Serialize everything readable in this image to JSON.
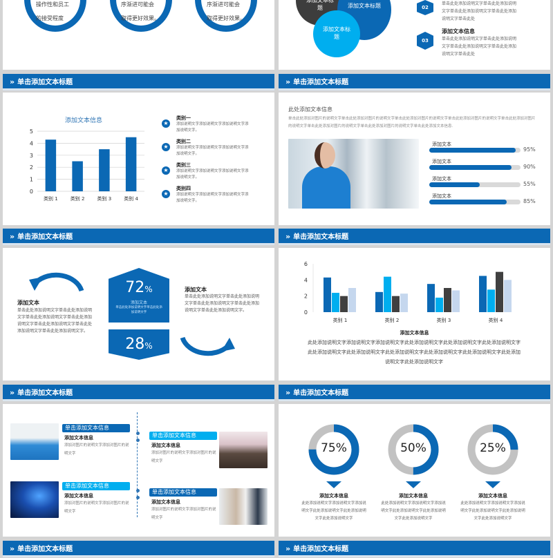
{
  "header_title": "单击添加文本标题",
  "colors": {
    "primary": "#0b68b4",
    "light": "#00aeef",
    "dark": "#404040",
    "pale": "#c5d7ee",
    "gray": "#d9d9d9"
  },
  "slide_top_left": {
    "circles": [
      {
        "lines": [
          "操作性和员工",
          "的接受程度"
        ]
      },
      {
        "lines": [
          "序渐进可能会",
          "取得更好效果。"
        ]
      },
      {
        "lines": [
          "序渐进可能会",
          "取得更好效果。"
        ]
      }
    ]
  },
  "slide_top_right": {
    "bubbles": [
      "添加文本标题",
      "添加文本标题",
      "添加文本标题"
    ],
    "items": [
      {
        "num": "02",
        "title": "",
        "text": "单击此处添加说明文字单击此处添加说明文字单击此处添加说明文字单击此处添加说明文字单击此处"
      },
      {
        "num": "03",
        "title": "添加文本信息",
        "text": "单击此处添加说明文字单击此处添加说明文字单击此处添加说明文字单击此处添加说明文字单击此处"
      }
    ]
  },
  "chart_data": [
    {
      "type": "bar",
      "title": "添加文本信息",
      "categories": [
        "类别 1",
        "类别 2",
        "类别 3",
        "类别 4"
      ],
      "values": [
        4.3,
        2.5,
        3.5,
        4.5
      ],
      "ylim": [
        0,
        5
      ],
      "yticks": [
        0,
        1,
        2,
        3,
        4,
        5
      ],
      "grid": true
    },
    {
      "type": "bar",
      "title": "",
      "categories": [
        "类别 1",
        "类别 2",
        "类别 3",
        "类别 4"
      ],
      "series": [
        {
          "values": [
            4.3,
            2.5,
            3.5,
            4.5
          ],
          "color": "#0b68b4"
        },
        {
          "values": [
            2.4,
            4.4,
            1.8,
            2.8
          ],
          "color": "#00aeef"
        },
        {
          "values": [
            2,
            2,
            3,
            5
          ],
          "color": "#404040"
        },
        {
          "values": [
            3,
            2.3,
            2.7,
            4
          ],
          "color": "#c5d7ee"
        }
      ],
      "ylim": [
        0,
        6
      ],
      "yticks": [
        0,
        2,
        4,
        6
      ],
      "grid": false
    }
  ],
  "slide_chart1": {
    "legend": [
      {
        "title": "类别一",
        "text": "添加说明文字添加说明文字添加说明文字添加说明文字。"
      },
      {
        "title": "类别二",
        "text": "添加说明文字添加说明文字添加说明文字添加说明文字。"
      },
      {
        "title": "类别三",
        "text": "添加说明文字添加说明文字添加说明文字添加说明文字。"
      },
      {
        "title": "类别四",
        "text": "添加说明文字添加说明文字添加说明文字添加说明文字。"
      }
    ]
  },
  "slide_progress": {
    "title": "此处添加文本信息",
    "paragraph": "单击此处添加对图片的说明文字单击此处添加对图片的说明文字单击此处添加对图片的说明文字单击此处添加对图片的说明文字单击此处添加对图片的说明文字单击此处添加对图片的说明文字单击此处添加对图片的说明文字单击此处添加文本信息.",
    "bars": [
      {
        "label": "添加文本",
        "value": 95,
        "text": "95%"
      },
      {
        "label": "添加文本",
        "value": 90,
        "text": "90%"
      },
      {
        "label": "添加文本",
        "value": 55,
        "text": "55%"
      },
      {
        "label": "添加文本",
        "value": 85,
        "text": "85%"
      }
    ]
  },
  "slide_percent": {
    "left_title": "添加文本",
    "left_text": "单击此处添加说明文字单击此处添加说明文字单击此处添加说明文字单击此处添加说明文字单击此处添加说明文字单击此处添加说明文字单击此处添加说明文字。",
    "top_value": "72",
    "top_label": "添加文本",
    "top_text": "单击此处添加说明文字单击此处添加说明文字",
    "bottom_value": "28",
    "percent_sign": "%",
    "right_title": "添加文本",
    "right_text": "单击此处添加说明文字单击此处添加说明文字单击此处添加说明文字单击此处添加说明文字单击此处添加说明文字。"
  },
  "slide_chart2": {
    "title": "添加文本信息",
    "text": "此处添加说明文字添加说明文字添加说明文字此处添加说明文字此处添加说明文字此处添加说明文字此处添加说明文字此处添加说明文字此处添加说明文字此处添加说明文字此处添加说明文字此处添加说明文字此处添加说明文字"
  },
  "slide_photos": {
    "items": [
      {
        "label": "单击添加文本信息",
        "title": "添加文本信息",
        "text": "添加对图片的说明文字添加对图片的说明文字"
      },
      {
        "label": "单击添加文本信息",
        "title": "添加文本信息",
        "text": "添加对图片的说明文字添加对图片的说明文字"
      },
      {
        "label": "单击添加文本信息",
        "title": "添加文本信息",
        "text": "添加对图片的说明文字添加对图片的说明文字"
      },
      {
        "label": "单击添加文本信息",
        "title": "添加文本信息",
        "text": "添加对图片的说明文字添加对图片的说明文字"
      }
    ]
  },
  "slide_donuts": {
    "items": [
      {
        "value": 75,
        "text": "75%",
        "title": "添加文本信息",
        "desc": "此处添加说明文字添加说明文字添加说明文字此处添加说明文字此处添加说明文字此处添加说明文字"
      },
      {
        "value": 50,
        "text": "50%",
        "title": "添加文本信息",
        "desc": "此处添加说明文字添加说明文字添加说明文字此处添加说明文字此处添加说明文字此处添加说明文字"
      },
      {
        "value": 25,
        "text": "25%",
        "title": "添加文本信息",
        "desc": "此处添加说明文字添加说明文字添加说明文字此处添加说明文字此处添加说明文字此处添加说明文字"
      }
    ]
  }
}
